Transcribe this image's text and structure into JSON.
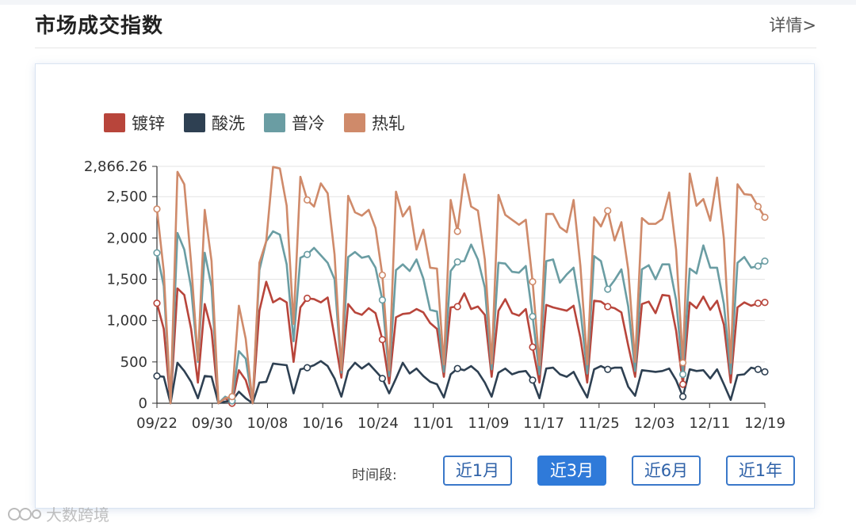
{
  "section": {
    "title": "市场成交指数",
    "details_label": "详情>"
  },
  "period": {
    "label": "时间段:",
    "buttons": [
      {
        "label": "近1月",
        "active": false
      },
      {
        "label": "近3月",
        "active": true
      },
      {
        "label": "近6月",
        "active": false
      },
      {
        "label": "近1年",
        "active": false
      }
    ]
  },
  "watermark": {
    "text": "大数跨境"
  },
  "chart_data": {
    "type": "line",
    "x_start": "09/22",
    "x_end": "12/19",
    "x_tick_labels": [
      "09/22",
      "09/30",
      "10/08",
      "10/16",
      "10/24",
      "11/01",
      "11/09",
      "11/17",
      "11/25",
      "12/03",
      "12/11",
      "12/19"
    ],
    "y_tick_labels": [
      "0",
      "500",
      "1,000",
      "1,500",
      "2,000",
      "2,500",
      "2,866.26"
    ],
    "ylim": [
      0,
      2866.26
    ],
    "grid": true,
    "legend_position": "top-left",
    "series": [
      {
        "name": "镀锌",
        "color": "#b8453b",
        "values": [
          1210,
          900,
          0,
          1390,
          1310,
          900,
          250,
          1200,
          880,
          0,
          60,
          0,
          400,
          280,
          0,
          1120,
          1470,
          1220,
          1270,
          1220,
          500,
          1160,
          1270,
          1260,
          1220,
          1280,
          800,
          310,
          1200,
          1100,
          1070,
          1150,
          1090,
          770,
          240,
          1040,
          1080,
          1090,
          1140,
          1100,
          970,
          900,
          320,
          1160,
          1170,
          1330,
          1140,
          1170,
          1070,
          320,
          1120,
          1260,
          1090,
          1060,
          1140,
          680,
          250,
          1190,
          1160,
          1140,
          1120,
          1180,
          790,
          250,
          1240,
          1230,
          1170,
          1150,
          1100,
          700,
          320,
          1200,
          1230,
          1090,
          1310,
          1300,
          880,
          230,
          1220,
          1150,
          1290,
          1130,
          1240,
          950,
          250,
          1160,
          1220,
          1180,
          1210,
          1220
        ]
      },
      {
        "name": "酸洗",
        "color": "#2e4052",
        "values": [
          330,
          320,
          0,
          490,
          390,
          260,
          60,
          330,
          320,
          0,
          20,
          30,
          140,
          60,
          0,
          250,
          260,
          480,
          470,
          460,
          120,
          410,
          430,
          460,
          510,
          450,
          300,
          80,
          390,
          490,
          420,
          480,
          390,
          300,
          120,
          300,
          490,
          360,
          420,
          330,
          260,
          230,
          70,
          350,
          420,
          400,
          450,
          380,
          250,
          80,
          370,
          420,
          350,
          380,
          390,
          280,
          60,
          420,
          430,
          350,
          320,
          380,
          220,
          70,
          410,
          450,
          410,
          430,
          430,
          200,
          90,
          400,
          390,
          380,
          390,
          420,
          280,
          80,
          410,
          390,
          400,
          300,
          410,
          230,
          40,
          340,
          350,
          430,
          410,
          380
        ]
      },
      {
        "name": "普冷",
        "color": "#6a9da3",
        "values": [
          1820,
          1420,
          0,
          2060,
          1860,
          1400,
          500,
          1820,
          1410,
          0,
          80,
          30,
          630,
          540,
          0,
          1610,
          1960,
          2080,
          2040,
          1680,
          750,
          1760,
          1800,
          1880,
          1790,
          1700,
          1500,
          370,
          1770,
          1830,
          1760,
          1780,
          1640,
          1250,
          330,
          1610,
          1680,
          1600,
          1740,
          1510,
          1130,
          1110,
          380,
          1600,
          1710,
          1720,
          1920,
          1740,
          1400,
          410,
          1700,
          1690,
          1590,
          1580,
          1660,
          1050,
          350,
          1720,
          1740,
          1460,
          1560,
          1640,
          1130,
          360,
          1780,
          1720,
          1380,
          1490,
          1620,
          1170,
          390,
          1620,
          1670,
          1500,
          1680,
          1680,
          1250,
          350,
          1630,
          1570,
          1910,
          1640,
          1640,
          1200,
          360,
          1700,
          1770,
          1640,
          1660,
          1720
        ]
      },
      {
        "name": "热轧",
        "color": "#cf8a6a",
        "values": [
          2350,
          1600,
          0,
          2800,
          2650,
          1700,
          520,
          2340,
          1720,
          0,
          60,
          80,
          1180,
          780,
          0,
          1700,
          1960,
          2860,
          2840,
          2390,
          960,
          2740,
          2460,
          2380,
          2660,
          2540,
          1800,
          400,
          2510,
          2310,
          2270,
          2340,
          2120,
          1550,
          400,
          2560,
          2260,
          2380,
          1860,
          2100,
          1640,
          1630,
          470,
          2460,
          2080,
          2770,
          2380,
          2330,
          1740,
          480,
          2520,
          2280,
          2220,
          2160,
          2220,
          1470,
          460,
          2290,
          2290,
          2130,
          2070,
          2460,
          1660,
          470,
          2250,
          2140,
          2330,
          1970,
          2190,
          1620,
          500,
          2240,
          2170,
          2170,
          2230,
          2550,
          1860,
          490,
          2780,
          2390,
          2470,
          2210,
          2730,
          1990,
          490,
          2650,
          2530,
          2520,
          2380,
          2250
        ]
      }
    ]
  }
}
